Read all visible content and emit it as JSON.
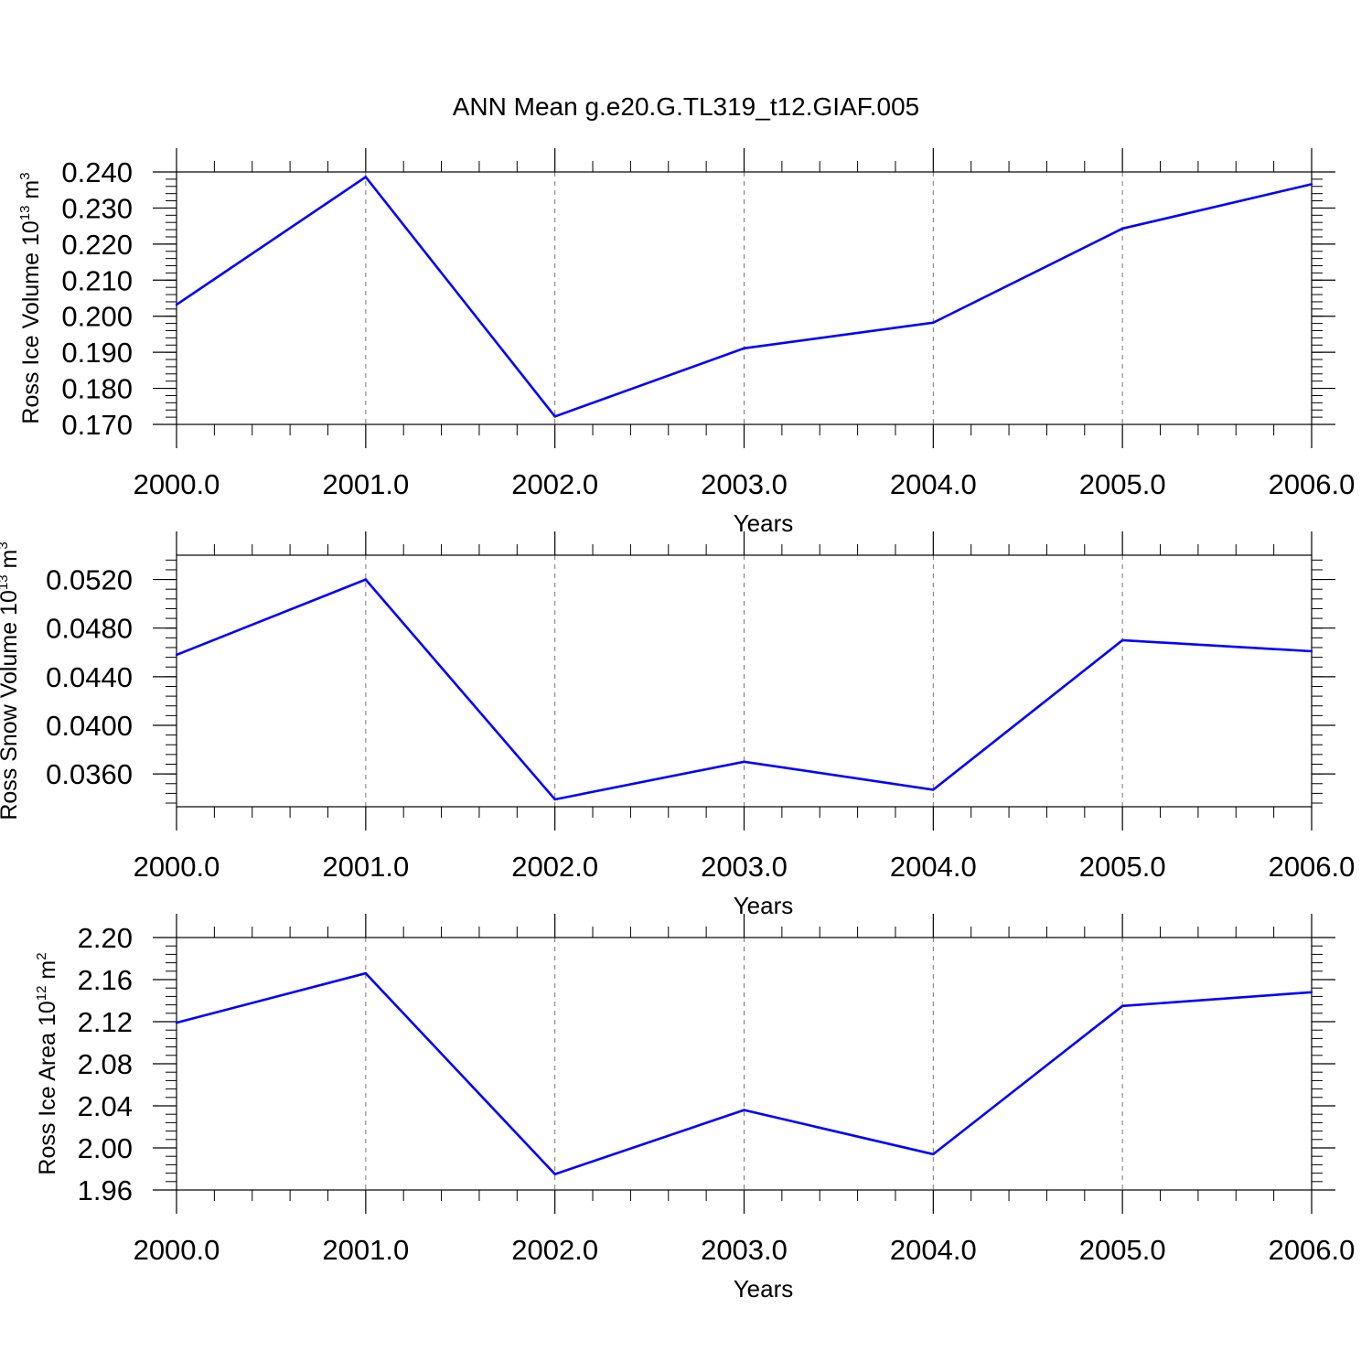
{
  "chart_data": [
    {
      "type": "line",
      "title": "ANN Mean g.e20.G.TL319_t12.GIAF.005",
      "xlabel": "Years",
      "ylabel": {
        "text": "Ross Ice Volume 10",
        "exponent": "13",
        "unit": " m",
        "unit_exponent": "3"
      },
      "x": [
        2000,
        2001,
        2002,
        2003,
        2004,
        2005,
        2006
      ],
      "x_ticks": [
        "2000.0",
        "2001.0",
        "2002.0",
        "2003.0",
        "2004.0",
        "2005.0",
        "2006.0"
      ],
      "xlim": [
        2000,
        2006
      ],
      "values": [
        0.2032,
        0.2386,
        0.1722,
        0.1911,
        0.1982,
        0.2243,
        0.2366
      ],
      "ylim": [
        0.17,
        0.24
      ],
      "y_ticks": [
        "0.170",
        "0.180",
        "0.190",
        "0.200",
        "0.210",
        "0.220",
        "0.230",
        "0.240"
      ],
      "line_color": "#0000ff",
      "grid": "vertical dashed at major x ticks"
    },
    {
      "type": "line",
      "xlabel": "Years",
      "ylabel": {
        "text": "Ross Snow Volume 10",
        "exponent": "13",
        "unit": " m",
        "unit_exponent": "3"
      },
      "x": [
        2000,
        2001,
        2002,
        2003,
        2004,
        2005,
        2006
      ],
      "x_ticks": [
        "2000.0",
        "2001.0",
        "2002.0",
        "2003.0",
        "2004.0",
        "2005.0",
        "2006.0"
      ],
      "xlim": [
        2000,
        2006
      ],
      "values": [
        0.0458,
        0.052,
        0.0339,
        0.037,
        0.0347,
        0.047,
        0.0461
      ],
      "ylim": [
        0.0333,
        0.054
      ],
      "y_ticks": [
        "0.0360",
        "0.0400",
        "0.0440",
        "0.0480",
        "0.0520"
      ],
      "line_color": "#0000ff",
      "grid": "vertical dashed at major x ticks"
    },
    {
      "type": "line",
      "xlabel": "Years",
      "ylabel": {
        "text": "Ross Ice Area 10",
        "exponent": "12",
        "unit": " m",
        "unit_exponent": "2"
      },
      "x": [
        2000,
        2001,
        2002,
        2003,
        2004,
        2005,
        2006
      ],
      "x_ticks": [
        "2000.0",
        "2001.0",
        "2002.0",
        "2003.0",
        "2004.0",
        "2005.0",
        "2006.0"
      ],
      "xlim": [
        2000,
        2006
      ],
      "values": [
        2.119,
        2.166,
        1.975,
        2.036,
        1.994,
        2.135,
        2.148
      ],
      "ylim": [
        1.96,
        2.2
      ],
      "y_ticks": [
        "1.96",
        "2.00",
        "2.04",
        "2.08",
        "2.12",
        "2.16",
        "2.20"
      ],
      "line_color": "#0000ff",
      "grid": "vertical dashed at major x ticks"
    }
  ]
}
